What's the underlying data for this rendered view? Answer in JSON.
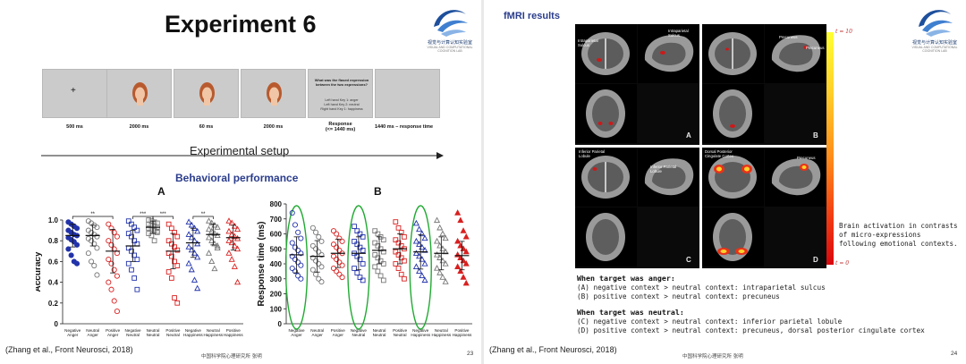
{
  "left_slide": {
    "title": "Experiment 6",
    "logo_text": "视觉与计算认知实验室",
    "logo_sub": "VISUAL AND COMPUTATIONAL COGNITION LAB",
    "trial_frames": [
      {
        "content": "fixation",
        "symbol": "+",
        "duration": "500 ms"
      },
      {
        "content": "face",
        "duration": "2000 ms"
      },
      {
        "content": "face",
        "duration": "60 ms"
      },
      {
        "content": "face",
        "duration": "2000 ms"
      },
      {
        "content": "question",
        "question": "What was the flased expression between the two expressions?",
        "options": [
          "Left hand Key 1: anger",
          "Left hand Key 2: neutral",
          "Right hand Key 1: happiness"
        ],
        "duration": "Response",
        "duration2": "(<= 1440 ms)"
      },
      {
        "content": "blank",
        "duration": "1440 ms  – response time"
      }
    ],
    "setup_label": "Experimental setup",
    "section_heading": "Behavioral performance",
    "citation": "(Zhang et al., Front Neurosci, 2018)",
    "footer": "中国科学院心理研究所 张明",
    "page_number": "23"
  },
  "chart_data": [
    {
      "type": "scatter",
      "panel": "A",
      "ylabel": "Accuracy",
      "ylim": [
        0,
        1.0
      ],
      "yticks": [
        "0",
        "0.2",
        "0.4",
        "0.6",
        "0.8",
        "1.0"
      ],
      "categories": [
        "Negative Anger",
        "Neutral Anger",
        "Positive Anger",
        "Negative Neutral",
        "Neutral Neutral",
        "Positive Neutral",
        "Negative Happiness",
        "Neutral Happiness",
        "Positive Happiness"
      ],
      "category_lines": [
        [
          "Negative",
          "Anger"
        ],
        [
          "Neutral",
          "Anger"
        ],
        [
          "Positive",
          "Anger"
        ],
        [
          "Negative",
          "Neutral"
        ],
        [
          "Neutral",
          "Neutral"
        ],
        [
          "Positive",
          "Neutral"
        ],
        [
          "Negative",
          "Happiness"
        ],
        [
          "Neutral",
          "Happiness"
        ],
        [
          "Positive",
          "Happiness"
        ]
      ],
      "colors": [
        "#2233aa",
        "#777777",
        "#d92020",
        "#2233aa",
        "#777777",
        "#d92020",
        "#2233aa",
        "#777777",
        "#d92020"
      ],
      "markers": [
        "circle",
        "circle",
        "circle",
        "square",
        "square",
        "square",
        "triangle",
        "triangle",
        "triangle"
      ],
      "filled": [
        true,
        false,
        false,
        false,
        false,
        false,
        false,
        false,
        false
      ],
      "means": [
        0.85,
        0.85,
        0.7,
        0.75,
        0.93,
        0.7,
        0.78,
        0.86,
        0.83
      ],
      "sds": [
        0.11,
        0.1,
        0.21,
        0.15,
        0.06,
        0.17,
        0.14,
        0.1,
        0.12
      ],
      "points": [
        [
          0.98,
          0.96,
          0.94,
          0.92,
          0.9,
          0.88,
          0.86,
          0.85,
          0.83,
          0.81,
          0.79,
          0.76,
          0.72,
          0.66,
          0.6,
          0.58
        ],
        [
          0.99,
          0.97,
          0.95,
          0.93,
          0.9,
          0.88,
          0.86,
          0.84,
          0.82,
          0.8,
          0.77,
          0.73,
          0.68,
          0.6,
          0.56,
          0.47
        ],
        [
          0.96,
          0.92,
          0.88,
          0.84,
          0.8,
          0.76,
          0.72,
          0.68,
          0.62,
          0.58,
          0.52,
          0.46,
          0.4,
          0.33,
          0.22,
          0.12
        ],
        [
          0.99,
          0.96,
          0.93,
          0.9,
          0.87,
          0.84,
          0.8,
          0.77,
          0.73,
          0.7,
          0.66,
          0.62,
          0.58,
          0.52,
          0.44,
          0.33
        ],
        [
          1.0,
          0.99,
          0.98,
          0.97,
          0.96,
          0.95,
          0.94,
          0.93,
          0.92,
          0.91,
          0.9,
          0.89,
          0.87,
          0.85,
          0.8,
          0.88
        ],
        [
          0.96,
          0.92,
          0.88,
          0.84,
          0.8,
          0.77,
          0.74,
          0.71,
          0.68,
          0.65,
          0.6,
          0.56,
          0.5,
          0.44,
          0.25,
          0.2
        ],
        [
          0.98,
          0.95,
          0.92,
          0.89,
          0.86,
          0.83,
          0.8,
          0.77,
          0.74,
          0.71,
          0.68,
          0.64,
          0.58,
          0.52,
          0.42,
          0.34
        ],
        [
          0.99,
          0.97,
          0.95,
          0.93,
          0.91,
          0.89,
          0.87,
          0.85,
          0.83,
          0.8,
          0.77,
          0.73,
          0.68,
          0.6,
          0.53,
          0.75
        ],
        [
          0.99,
          0.97,
          0.94,
          0.91,
          0.89,
          0.86,
          0.84,
          0.82,
          0.8,
          0.78,
          0.75,
          0.72,
          0.68,
          0.62,
          0.55,
          0.4
        ]
      ],
      "significance": [
        {
          "from": 0,
          "to": 2,
          "label": "**"
        },
        {
          "from": 3,
          "to": 4,
          "label": "***"
        },
        {
          "from": 4,
          "to": 5,
          "label": "***"
        },
        {
          "from": 6,
          "to": 7,
          "label": "**"
        }
      ]
    },
    {
      "type": "scatter",
      "panel": "B",
      "ylabel": "Response time (ms)",
      "ylim": [
        0,
        800
      ],
      "yticks": [
        "0",
        "100",
        "200",
        "300",
        "400",
        "500",
        "600",
        "700",
        "800"
      ],
      "categories": [
        "Negative Anger",
        "Neutral Anger",
        "Positive Anger",
        "Negative Neutral",
        "Neutral Neutral",
        "Positive Neutral",
        "Negative Happiness",
        "Neutral Happiness",
        "Positive Happiness"
      ],
      "category_lines": [
        [
          "Negative",
          "Anger"
        ],
        [
          "Neutral",
          "Anger"
        ],
        [
          "Positive",
          "Anger"
        ],
        [
          "Negative",
          "Neutral"
        ],
        [
          "Neutral",
          "Neutral"
        ],
        [
          "Positive",
          "Neutral"
        ],
        [
          "Negative",
          "Happiness"
        ],
        [
          "Neutral",
          "Happiness"
        ],
        [
          "Positive",
          "Happiness"
        ]
      ],
      "colors": [
        "#2233aa",
        "#777777",
        "#d92020",
        "#2233aa",
        "#777777",
        "#d92020",
        "#2233aa",
        "#777777",
        "#d92020"
      ],
      "markers": [
        "circle",
        "circle",
        "circle",
        "square",
        "square",
        "square",
        "triangle",
        "triangle",
        "triangle"
      ],
      "filled": [
        false,
        false,
        false,
        false,
        false,
        false,
        false,
        false,
        true
      ],
      "means": [
        460,
        450,
        470,
        470,
        490,
        500,
        480,
        470,
        455
      ],
      "sds": [
        120,
        105,
        95,
        110,
        90,
        100,
        115,
        110,
        95
      ],
      "points": [
        [
          740,
          660,
          610,
          570,
          540,
          510,
          490,
          470,
          450,
          430,
          410,
          390,
          370,
          350,
          320,
          300
        ],
        [
          640,
          610,
          580,
          550,
          520,
          500,
          480,
          460,
          440,
          420,
          400,
          380,
          360,
          330,
          300,
          280
        ],
        [
          620,
          600,
          570,
          550,
          530,
          510,
          490,
          470,
          450,
          430,
          410,
          390,
          370,
          350,
          330,
          310
        ],
        [
          650,
          620,
          600,
          580,
          550,
          530,
          510,
          490,
          470,
          450,
          430,
          400,
          370,
          340,
          310,
          290
        ],
        [
          620,
          600,
          580,
          560,
          540,
          520,
          500,
          480,
          460,
          440,
          420,
          400,
          380,
          350,
          320,
          290
        ],
        [
          680,
          640,
          610,
          580,
          560,
          540,
          520,
          500,
          480,
          460,
          440,
          420,
          400,
          370,
          330,
          300
        ],
        [
          670,
          630,
          600,
          570,
          550,
          530,
          510,
          490,
          470,
          450,
          430,
          400,
          380,
          350,
          320,
          290
        ],
        [
          690,
          640,
          600,
          570,
          550,
          520,
          500,
          480,
          460,
          440,
          420,
          400,
          370,
          340,
          310,
          280
        ],
        [
          740,
          690,
          620,
          580,
          550,
          520,
          500,
          480,
          460,
          440,
          420,
          400,
          380,
          350,
          310,
          270
        ]
      ],
      "highlight_ellipses": [
        0,
        3,
        6
      ]
    }
  ],
  "right_slide": {
    "title": "fMRI results",
    "logo_text": "视觉与计算认知实验室",
    "logo_sub": "VISUAL AND COMPUTATIONAL COGNITION LAB",
    "panels": [
      {
        "letter": "A",
        "labels": [
          "Intraparietal",
          "Sulcus",
          "Intraparietal",
          "Sulcus"
        ]
      },
      {
        "letter": "B",
        "labels": [
          "Precuneus",
          "Precuneus"
        ]
      },
      {
        "letter": "C",
        "labels": [
          "Inferior Parietal",
          "Lobule",
          "Inferior Parietal",
          "Lobule"
        ]
      },
      {
        "letter": "D",
        "labels": [
          "Dorsal Posterior",
          "Cingulate Cortex",
          "Precuneus"
        ]
      }
    ],
    "colorbar": {
      "top": "t = 10",
      "bottom": "t = 0"
    },
    "activation_caption": "Brain activation in contrasts of micro-expressions following emotional contexts.",
    "findings": [
      {
        "heading": "When target was anger:",
        "lines": [
          "(A) negative context > neutral context: intraparietal sulcus",
          "(B) positive context > neutral context: precuneus"
        ]
      },
      {
        "heading": "When target was neutral:",
        "lines": [
          "(C) negative context > neutral context: inferior parietal lobule",
          "(D) positive context > neutral context: precuneus, dorsal posterior cingulate cortex"
        ]
      }
    ],
    "citation": "(Zhang et al., Front Neurosci, 2018)",
    "footer": "中国科学院心理研究所 张明",
    "page_number": "24"
  },
  "colors": {
    "heading_blue": "#2b3d8c",
    "negative": "#2233aa",
    "neutral": "#777777",
    "positive": "#d92020",
    "ellipse": "#22aa33"
  }
}
